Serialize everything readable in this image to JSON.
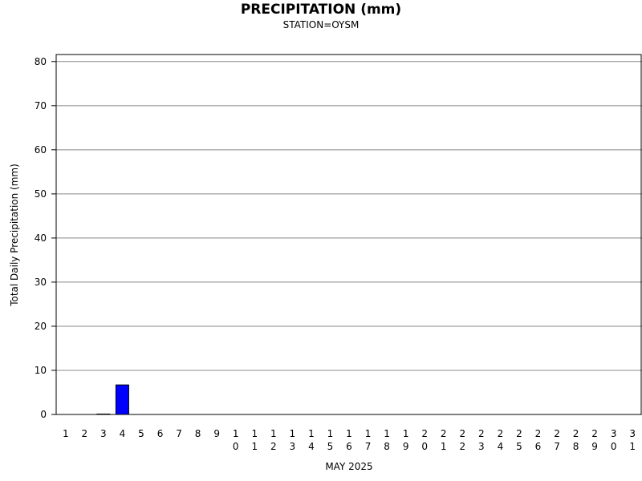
{
  "chart_data": {
    "type": "bar",
    "title": "PRECIPITATION (mm)",
    "subtitle": "STATION=OYSM",
    "x_label": "MAY 2025",
    "y_label": "Total Daily Precipitation (mm)",
    "categories": [
      "1",
      "2",
      "3",
      "4",
      "5",
      "6",
      "7",
      "8",
      "9",
      "10",
      "11",
      "12",
      "13",
      "14",
      "15",
      "16",
      "17",
      "18",
      "19",
      "20",
      "21",
      "22",
      "23",
      "24",
      "25",
      "26",
      "27",
      "28",
      "29",
      "30",
      "31"
    ],
    "values": [
      0,
      0,
      0.1,
      6.7,
      0,
      0,
      0,
      0,
      0,
      0,
      0,
      0,
      0,
      0,
      0,
      0,
      0,
      0,
      0,
      0,
      0,
      0,
      0,
      0,
      0,
      0,
      0,
      0,
      0,
      0,
      0
    ],
    "color": "#0000ff",
    "ylim": [
      0,
      81.6
    ],
    "yticks": [
      0,
      10,
      20,
      30,
      40,
      50,
      60,
      70,
      80
    ],
    "grid": true
  }
}
